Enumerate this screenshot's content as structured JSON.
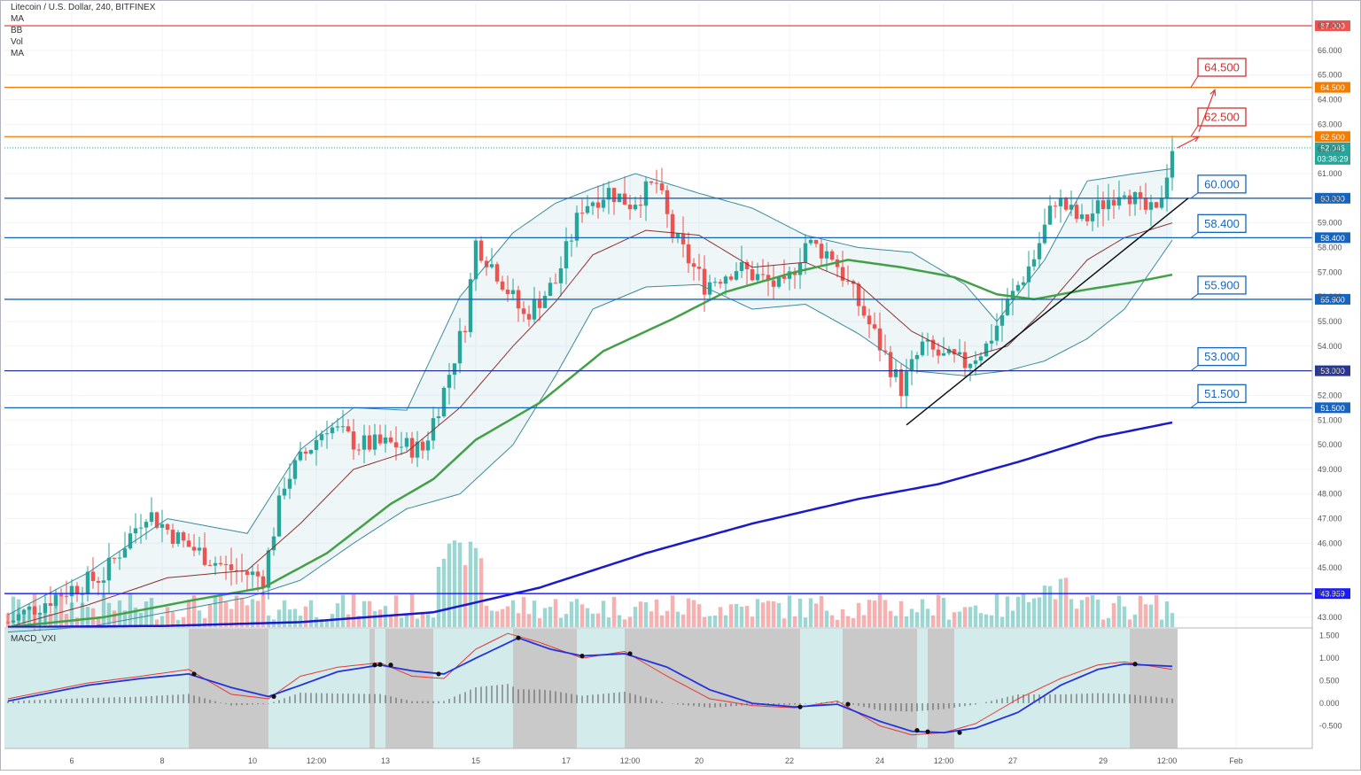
{
  "header": {
    "title": "Litecoin / U.S. Dollar, 240, BITFINEX",
    "indicators": [
      "MA",
      "BB",
      "Vol",
      "MA"
    ]
  },
  "macd_panel": {
    "label": "MACD_VXI"
  },
  "chart_data": {
    "type": "candlestick",
    "price_axis": {
      "ylim": [
        42.6,
        67.9
      ],
      "ticks": [
        "43.000",
        "44.000",
        "45.000",
        "46.000",
        "47.000",
        "48.000",
        "49.000",
        "50.000",
        "51.000",
        "52.000",
        "53.000",
        "54.000",
        "55.000",
        "56.000",
        "57.000",
        "58.000",
        "59.000",
        "60.000",
        "61.000",
        "62.000",
        "63.000",
        "64.000",
        "65.000",
        "66.000",
        "67.000"
      ]
    },
    "macd_axis": {
      "ylim": [
        -1.0,
        1.65
      ],
      "ticks": [
        "1.500",
        "1.000",
        "0.500",
        "0.000",
        "-0.500"
      ]
    },
    "x_axis": {
      "bar_count": 220,
      "ticks": [
        {
          "label": "6",
          "bar": 12
        },
        {
          "label": "8",
          "bar": 29
        },
        {
          "label": "10",
          "bar": 46
        },
        {
          "label": "12:00",
          "bar": 58
        },
        {
          "label": "13",
          "bar": 71
        },
        {
          "label": "15",
          "bar": 88
        },
        {
          "label": "17",
          "bar": 105
        },
        {
          "label": "12:00",
          "bar": 117
        },
        {
          "label": "20",
          "bar": 130
        },
        {
          "label": "22",
          "bar": 147
        },
        {
          "label": "24",
          "bar": 164
        },
        {
          "label": "12:00",
          "bar": 176
        },
        {
          "label": "27",
          "bar": 189
        },
        {
          "label": "29",
          "bar": 206
        },
        {
          "label": "12:00",
          "bar": 218
        },
        {
          "label": "Feb",
          "bar": 231
        }
      ]
    },
    "level_lines": [
      {
        "value": 67.0,
        "label": "67.000",
        "color": "#ef5350",
        "boxed": false
      },
      {
        "value": 64.5,
        "label": "64.500",
        "color": "#f57c00",
        "boxed": true,
        "box_color": "#d32f2f"
      },
      {
        "value": 62.5,
        "label": "62.500",
        "color": "#f57c00",
        "boxed": true,
        "box_color": "#d32f2f"
      },
      {
        "value": 60.0,
        "label": "60.000",
        "color": "#1565c0",
        "boxed": true,
        "box_color": "#1565c0"
      },
      {
        "value": 58.4,
        "label": "58.400",
        "color": "#1565c0",
        "boxed": true,
        "box_color": "#1565c0"
      },
      {
        "value": 55.9,
        "label": "55.900",
        "color": "#1565c0",
        "boxed": true,
        "box_color": "#1565c0"
      },
      {
        "value": 53.0,
        "label": "53.000",
        "color": "#283593",
        "boxed": true,
        "box_color": "#1565c0"
      },
      {
        "value": 51.5,
        "label": "51.500",
        "color": "#1565c0",
        "boxed": true,
        "box_color": "#1565c0"
      },
      {
        "value": 43.959,
        "label": "43.959",
        "color": "#1a1aff",
        "boxed": false
      }
    ],
    "current_price": {
      "value": 62.046,
      "label": "62.046",
      "countdown": "03:36:29"
    },
    "series_keypoints": {
      "close": [
        [
          0,
          42.8
        ],
        [
          10,
          44.0
        ],
        [
          18,
          44.7
        ],
        [
          26,
          47.3
        ],
        [
          33,
          46.0
        ],
        [
          41,
          45.0
        ],
        [
          48,
          44.6
        ],
        [
          52,
          48.5
        ],
        [
          60,
          50.8
        ],
        [
          66,
          50.0
        ],
        [
          73,
          50.0
        ],
        [
          78,
          49.8
        ],
        [
          82,
          52.2
        ],
        [
          86,
          55.0
        ],
        [
          88,
          58.2
        ],
        [
          92,
          57.0
        ],
        [
          97,
          55.2
        ],
        [
          103,
          56.6
        ],
        [
          108,
          59.7
        ],
        [
          113,
          60.3
        ],
        [
          117,
          59.8
        ],
        [
          122,
          60.6
        ],
        [
          125,
          58.5
        ],
        [
          131,
          56.5
        ],
        [
          137,
          57.2
        ],
        [
          142,
          56.7
        ],
        [
          146,
          56.3
        ],
        [
          150,
          58.2
        ],
        [
          155,
          57.7
        ],
        [
          158,
          56.5
        ],
        [
          161,
          55.3
        ],
        [
          165,
          53.6
        ],
        [
          168,
          52.3
        ],
        [
          172,
          54.0
        ],
        [
          176,
          53.5
        ],
        [
          180,
          53.3
        ],
        [
          184,
          54.0
        ],
        [
          188,
          55.7
        ],
        [
          193,
          57.6
        ],
        [
          197,
          60.0
        ],
        [
          202,
          59.0
        ],
        [
          206,
          59.8
        ],
        [
          210,
          60.5
        ],
        [
          213,
          59.6
        ],
        [
          216,
          59.3
        ],
        [
          219,
          62.05
        ]
      ],
      "ma_green": [
        [
          0,
          42.6
        ],
        [
          18,
          43.0
        ],
        [
          35,
          43.7
        ],
        [
          48,
          44.2
        ],
        [
          60,
          45.6
        ],
        [
          72,
          47.6
        ],
        [
          80,
          48.6
        ],
        [
          88,
          50.2
        ],
        [
          100,
          51.7
        ],
        [
          112,
          53.8
        ],
        [
          125,
          55.1
        ],
        [
          135,
          56.2
        ],
        [
          148,
          57.0
        ],
        [
          158,
          57.5
        ],
        [
          168,
          57.2
        ],
        [
          178,
          56.8
        ],
        [
          186,
          56.1
        ],
        [
          193,
          55.9
        ],
        [
          203,
          56.3
        ],
        [
          212,
          56.6
        ],
        [
          219,
          56.9
        ]
      ],
      "ma_blue": [
        [
          0,
          42.6
        ],
        [
          30,
          42.65
        ],
        [
          55,
          42.8
        ],
        [
          80,
          43.2
        ],
        [
          100,
          44.2
        ],
        [
          120,
          45.6
        ],
        [
          140,
          46.8
        ],
        [
          160,
          47.8
        ],
        [
          175,
          48.4
        ],
        [
          190,
          49.3
        ],
        [
          205,
          50.3
        ],
        [
          219,
          50.9
        ]
      ],
      "bb_mid": [
        [
          0,
          42.6
        ],
        [
          15,
          43.5
        ],
        [
          30,
          44.6
        ],
        [
          45,
          44.9
        ],
        [
          55,
          46.8
        ],
        [
          65,
          49.0
        ],
        [
          75,
          49.7
        ],
        [
          85,
          51.5
        ],
        [
          95,
          54.0
        ],
        [
          103,
          55.8
        ],
        [
          110,
          57.7
        ],
        [
          120,
          58.7
        ],
        [
          130,
          58.5
        ],
        [
          140,
          57.2
        ],
        [
          150,
          57.4
        ],
        [
          160,
          56.5
        ],
        [
          170,
          54.6
        ],
        [
          180,
          53.5
        ],
        [
          188,
          54.0
        ],
        [
          195,
          55.5
        ],
        [
          203,
          57.5
        ],
        [
          210,
          58.4
        ],
        [
          219,
          59.0
        ]
      ],
      "bb_up": [
        [
          0,
          43.1
        ],
        [
          15,
          44.8
        ],
        [
          30,
          47.0
        ],
        [
          45,
          46.4
        ],
        [
          55,
          49.8
        ],
        [
          65,
          51.5
        ],
        [
          75,
          51.4
        ],
        [
          85,
          56.0
        ],
        [
          95,
          58.6
        ],
        [
          103,
          59.8
        ],
        [
          110,
          60.4
        ],
        [
          118,
          61.0
        ],
        [
          130,
          60.2
        ],
        [
          140,
          59.6
        ],
        [
          150,
          58.5
        ],
        [
          160,
          58.0
        ],
        [
          170,
          57.8
        ],
        [
          180,
          56.5
        ],
        [
          186,
          55.0
        ],
        [
          195,
          57.5
        ],
        [
          203,
          60.7
        ],
        [
          212,
          61.0
        ],
        [
          219,
          61.2
        ]
      ],
      "bb_low": [
        [
          0,
          42.4
        ],
        [
          15,
          42.6
        ],
        [
          30,
          43.2
        ],
        [
          45,
          43.8
        ],
        [
          55,
          44.5
        ],
        [
          65,
          46.0
        ],
        [
          75,
          47.4
        ],
        [
          85,
          48.0
        ],
        [
          95,
          50.0
        ],
        [
          103,
          52.8
        ],
        [
          110,
          55.5
        ],
        [
          120,
          56.4
        ],
        [
          130,
          56.5
        ],
        [
          140,
          55.5
        ],
        [
          150,
          55.7
        ],
        [
          160,
          54.5
        ],
        [
          170,
          53.0
        ],
        [
          180,
          52.8
        ],
        [
          188,
          53.0
        ],
        [
          195,
          53.4
        ],
        [
          203,
          54.3
        ],
        [
          210,
          55.5
        ],
        [
          219,
          58.3
        ]
      ],
      "macd_blue": [
        [
          0,
          0.05
        ],
        [
          15,
          0.4
        ],
        [
          25,
          0.55
        ],
        [
          34,
          0.65
        ],
        [
          42,
          0.35
        ],
        [
          49,
          0.15
        ],
        [
          55,
          0.4
        ],
        [
          62,
          0.7
        ],
        [
          70,
          0.85
        ],
        [
          76,
          0.72
        ],
        [
          82,
          0.65
        ],
        [
          88,
          1.0
        ],
        [
          96,
          1.45
        ],
        [
          102,
          1.2
        ],
        [
          108,
          1.05
        ],
        [
          116,
          1.1
        ],
        [
          124,
          0.8
        ],
        [
          132,
          0.3
        ],
        [
          140,
          0.0
        ],
        [
          148,
          -0.08
        ],
        [
          156,
          -0.02
        ],
        [
          164,
          -0.4
        ],
        [
          170,
          -0.62
        ],
        [
          176,
          -0.65
        ],
        [
          182,
          -0.55
        ],
        [
          190,
          -0.2
        ],
        [
          198,
          0.4
        ],
        [
          205,
          0.75
        ],
        [
          210,
          0.87
        ],
        [
          219,
          0.82
        ]
      ],
      "macd_red": [
        [
          0,
          0.1
        ],
        [
          15,
          0.45
        ],
        [
          25,
          0.6
        ],
        [
          34,
          0.75
        ],
        [
          42,
          0.2
        ],
        [
          49,
          0.1
        ],
        [
          55,
          0.6
        ],
        [
          62,
          0.8
        ],
        [
          70,
          0.9
        ],
        [
          76,
          0.6
        ],
        [
          82,
          0.55
        ],
        [
          88,
          1.2
        ],
        [
          94,
          1.55
        ],
        [
          100,
          1.35
        ],
        [
          108,
          1.0
        ],
        [
          116,
          1.15
        ],
        [
          124,
          0.6
        ],
        [
          132,
          0.1
        ],
        [
          140,
          -0.05
        ],
        [
          148,
          -0.1
        ],
        [
          156,
          0.05
        ],
        [
          164,
          -0.5
        ],
        [
          170,
          -0.7
        ],
        [
          176,
          -0.65
        ],
        [
          182,
          -0.45
        ],
        [
          190,
          0.1
        ],
        [
          198,
          0.55
        ],
        [
          205,
          0.85
        ],
        [
          210,
          0.92
        ],
        [
          219,
          0.75
        ]
      ]
    },
    "macd_gray_zones": [
      [
        34,
        49
      ],
      [
        68,
        69
      ],
      [
        71,
        80
      ],
      [
        95,
        107
      ],
      [
        116,
        149
      ],
      [
        157,
        171
      ],
      [
        173,
        178
      ],
      [
        211,
        220
      ]
    ],
    "macd_cross_points": [
      [
        35,
        0.65
      ],
      [
        50,
        0.15
      ],
      [
        69,
        0.85
      ],
      [
        70,
        0.86
      ],
      [
        72,
        0.85
      ],
      [
        81,
        0.65
      ],
      [
        96,
        1.45
      ],
      [
        108,
        1.05
      ],
      [
        117,
        1.1
      ],
      [
        149,
        -0.08
      ],
      [
        158,
        -0.02
      ],
      [
        171,
        -0.6
      ],
      [
        173,
        -0.63
      ],
      [
        179,
        -0.65
      ],
      [
        212,
        0.87
      ]
    ],
    "trendlines": [
      {
        "from": [
          169,
          50.8
        ],
        "to": [
          222,
          60.0
        ],
        "color": "#111111"
      }
    ],
    "projection_arrows": [
      {
        "from": [
          220,
          62.05
        ],
        "to": [
          224,
          62.5
        ]
      },
      {
        "from": [
          224,
          62.7
        ],
        "to": [
          227,
          64.4
        ]
      }
    ]
  }
}
